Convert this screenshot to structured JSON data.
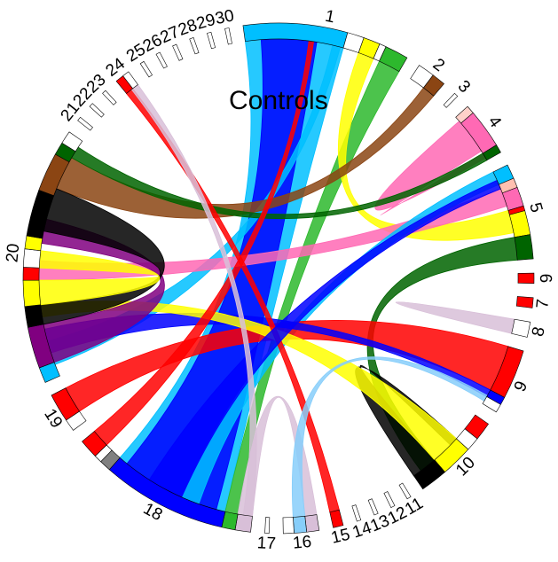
{
  "title": "Controls",
  "sectors": [
    {
      "id": "1",
      "label": "1",
      "width": 33,
      "segments": [
        [
          "#00bfff",
          0.62
        ],
        [
          "#ffffff",
          0.1
        ],
        [
          "#ffff00",
          0.1
        ],
        [
          "#ffffff",
          0.04
        ],
        [
          "#2db82d",
          0.14
        ]
      ]
    },
    {
      "id": "2",
      "label": "2",
      "width": 6,
      "segments": [
        [
          "#ffffff",
          0.55
        ],
        [
          "#8b4513",
          0.45
        ]
      ]
    },
    {
      "id": "3",
      "label": "3",
      "width": 0.8,
      "segments": [
        [
          "#ffffff",
          1
        ]
      ]
    },
    {
      "id": "4",
      "label": "4",
      "width": 11,
      "segments": [
        [
          "#ffd1c9",
          0.15
        ],
        [
          "#ff69b4",
          0.7
        ],
        [
          "#006400",
          0.15
        ]
      ]
    },
    {
      "id": "5",
      "label": "5",
      "width": 19,
      "segments": [
        [
          "#00bfff",
          0.15
        ],
        [
          "#ffc0b0",
          0.1
        ],
        [
          "#ff69b4",
          0.2
        ],
        [
          "#ff0000",
          0.05
        ],
        [
          "#ffff00",
          0.25
        ],
        [
          "#006400",
          0.25
        ]
      ]
    },
    {
      "id": "6",
      "label": "6",
      "width": 2,
      "segments": [
        [
          "#ff0000",
          1
        ]
      ]
    },
    {
      "id": "7",
      "label": "7",
      "width": 2,
      "segments": [
        [
          "#ff0000",
          1
        ]
      ]
    },
    {
      "id": "8",
      "label": "8",
      "width": 3,
      "segments": [
        [
          "#ffffff",
          1
        ]
      ]
    },
    {
      "id": "9",
      "label": "9",
      "width": 13,
      "segments": [
        [
          "#ff0000",
          0.75
        ],
        [
          "#0000ff",
          0.12
        ],
        [
          "#ffffff",
          0.13
        ]
      ]
    },
    {
      "id": "10",
      "label": "10",
      "width": 18,
      "segments": [
        [
          "#ff0000",
          0.2
        ],
        [
          "#ffffff",
          0.15
        ],
        [
          "#ffff00",
          0.35
        ],
        [
          "#000000",
          0.3
        ]
      ]
    },
    {
      "id": "11",
      "label": "11",
      "width": 0.8,
      "segments": [
        [
          "#ffffff",
          1
        ]
      ]
    },
    {
      "id": "12",
      "label": "12",
      "width": 0.8,
      "segments": [
        [
          "#ffffff",
          1
        ]
      ]
    },
    {
      "id": "13",
      "label": "13",
      "width": 0.8,
      "segments": [
        [
          "#ffffff",
          1
        ]
      ]
    },
    {
      "id": "14",
      "label": "14",
      "width": 0.8,
      "segments": [
        [
          "#ffffff",
          1
        ]
      ]
    },
    {
      "id": "15",
      "label": "15",
      "width": 2,
      "segments": [
        [
          "#ff0000",
          1
        ]
      ]
    },
    {
      "id": "16",
      "label": "16",
      "width": 7,
      "segments": [
        [
          "#d8bfd8",
          0.35
        ],
        [
          "#87cefa",
          0.35
        ],
        [
          "#ffffff",
          0.3
        ]
      ]
    },
    {
      "id": "17",
      "label": "17",
      "width": 0.8,
      "segments": [
        [
          "#ffffff",
          1
        ]
      ]
    },
    {
      "id": "18",
      "label": "18",
      "width": 38,
      "segments": [
        [
          "#d8bfd8",
          0.08
        ],
        [
          "#2db82d",
          0.07
        ],
        [
          "#0000ff",
          0.65
        ],
        [
          "#808080",
          0.06
        ],
        [
          "#ffffff",
          0.04
        ],
        [
          "#ff0000",
          0.1
        ]
      ]
    },
    {
      "id": "19",
      "label": "19",
      "width": 8,
      "segments": [
        [
          "#ffffff",
          0.3
        ],
        [
          "#ff0000",
          0.7
        ]
      ]
    },
    {
      "id": "20",
      "label": "20",
      "width": 51,
      "segments": [
        [
          "#00bfff",
          0.06
        ],
        [
          "#800080",
          0.16
        ],
        [
          "#000000",
          0.08
        ],
        [
          "#ffff00",
          0.1
        ],
        [
          "#ff0000",
          0.05
        ],
        [
          "#ffffff",
          0.07
        ],
        [
          "#ffff00",
          0.05
        ],
        [
          "#000000",
          0.18
        ],
        [
          "#8b4513",
          0.15
        ],
        [
          "#006400",
          0.05
        ],
        [
          "#ffffff",
          0.05
        ]
      ]
    },
    {
      "id": "21",
      "label": "21",
      "width": 0.8,
      "segments": [
        [
          "#ffffff",
          1
        ]
      ]
    },
    {
      "id": "22",
      "label": "22",
      "width": 0.8,
      "segments": [
        [
          "#ffffff",
          1
        ]
      ]
    },
    {
      "id": "23",
      "label": "23",
      "width": 0.8,
      "segments": [
        [
          "#ffffff",
          1
        ]
      ]
    },
    {
      "id": "24",
      "label": "24",
      "width": 3,
      "segments": [
        [
          "#ff0000",
          0.55
        ],
        [
          "#ffffff",
          0.45
        ]
      ]
    },
    {
      "id": "25",
      "label": "25",
      "width": 0.8,
      "segments": [
        [
          "#ffffff",
          1
        ]
      ]
    },
    {
      "id": "26",
      "label": "26",
      "width": 0.8,
      "segments": [
        [
          "#ffffff",
          1
        ]
      ]
    },
    {
      "id": "27",
      "label": "27",
      "width": 0.8,
      "segments": [
        [
          "#ffffff",
          1
        ]
      ]
    },
    {
      "id": "28",
      "label": "28",
      "width": 0.8,
      "segments": [
        [
          "#ffffff",
          1
        ]
      ]
    },
    {
      "id": "29",
      "label": "29",
      "width": 0.8,
      "segments": [
        [
          "#ffffff",
          1
        ]
      ]
    },
    {
      "id": "30",
      "label": "30",
      "width": 0.8,
      "segments": [
        [
          "#ffffff",
          1
        ]
      ]
    }
  ],
  "ribbons": [
    {
      "from": [
        "1",
        0.0,
        0.62
      ],
      "to": [
        "18",
        0.15,
        0.8
      ],
      "color": "#00bfff"
    },
    {
      "from": [
        "1",
        0.1,
        0.45
      ],
      "to": [
        "18",
        0.2,
        0.75
      ],
      "color": "#0000ff"
    },
    {
      "from": [
        "1",
        0.86,
        1.0
      ],
      "to": [
        "18",
        0.08,
        0.15
      ],
      "color": "#2db82d"
    },
    {
      "from": [
        "1",
        0.72,
        0.82
      ],
      "to": [
        "5",
        0.45,
        0.7
      ],
      "color": "#ffff00"
    },
    {
      "from": [
        "1",
        0.55,
        0.6
      ],
      "to": [
        "20",
        0.05,
        0.15
      ],
      "color": "#00bfff"
    },
    {
      "from": [
        "2",
        0.55,
        1.0
      ],
      "to": [
        "20",
        0.78,
        0.92
      ],
      "color": "#8b4513"
    },
    {
      "from": [
        "4",
        0.1,
        0.8
      ],
      "to": [
        "4",
        0.85,
        0.95
      ],
      "color": "#ff69b4"
    },
    {
      "from": [
        "4",
        0.85,
        1.0
      ],
      "to": [
        "20",
        0.92,
        0.97
      ],
      "color": "#006400"
    },
    {
      "from": [
        "5",
        0.2,
        0.4
      ],
      "to": [
        "20",
        0.4,
        0.48
      ],
      "color": "#ff69b4"
    },
    {
      "from": [
        "5",
        0.75,
        1.0
      ],
      "to": [
        "10",
        0.7,
        0.9
      ],
      "color": "#006400"
    },
    {
      "from": [
        "5",
        0.0,
        0.15
      ],
      "to": [
        "18",
        0.3,
        0.4
      ],
      "color": "#00bfff"
    },
    {
      "from": [
        "9",
        0.0,
        0.75
      ],
      "to": [
        "19",
        0.3,
        1.0
      ],
      "color": "#ff0000"
    },
    {
      "from": [
        "9",
        0.75,
        0.87
      ],
      "to": [
        "20",
        0.1,
        0.2
      ],
      "color": "#0000ff"
    },
    {
      "from": [
        "10",
        0.7,
        1.0
      ],
      "to": [
        "10",
        0.35,
        0.45
      ],
      "color": "#000000"
    },
    {
      "from": [
        "10",
        0.35,
        0.7
      ],
      "to": [
        "20",
        0.25,
        0.3
      ],
      "color": "#ffff00"
    },
    {
      "from": [
        "15",
        0.0,
        1.0
      ],
      "to": [
        "24",
        0.0,
        0.55
      ],
      "color": "#ff0000"
    },
    {
      "from": [
        "16",
        0.0,
        0.35
      ],
      "to": [
        "18",
        0.0,
        0.08
      ],
      "color": "#d8bfd8"
    },
    {
      "from": [
        "16",
        0.35,
        0.7
      ],
      "to": [
        "9",
        0.85,
        0.95
      ],
      "color": "#87cefa"
    },
    {
      "from": [
        "18",
        0.9,
        1.0
      ],
      "to": [
        "1",
        0.4,
        0.43
      ],
      "color": "#ff0000"
    },
    {
      "from": [
        "18",
        0.4,
        0.6
      ],
      "to": [
        "5",
        0.1,
        0.2
      ],
      "color": "#0000ff"
    },
    {
      "from": [
        "18",
        0.0,
        0.05
      ],
      "to": [
        "24",
        0.45,
        1.0
      ],
      "color": "#d8bfd8"
    },
    {
      "from": [
        "20",
        0.06,
        0.22
      ],
      "to": [
        "20",
        0.55,
        0.65
      ],
      "color": "#800080"
    },
    {
      "from": [
        "20",
        0.6,
        0.78
      ],
      "to": [
        "20",
        0.22,
        0.3
      ],
      "color": "#000000"
    },
    {
      "from": [
        "20",
        0.3,
        0.4
      ],
      "to": [
        "20",
        0.45,
        0.52
      ],
      "color": "#ffff00"
    },
    {
      "from": [
        "8",
        0.0,
        1.0
      ],
      "to": [
        "8",
        0.0,
        1.0
      ],
      "color": "#d8bfd8"
    }
  ]
}
